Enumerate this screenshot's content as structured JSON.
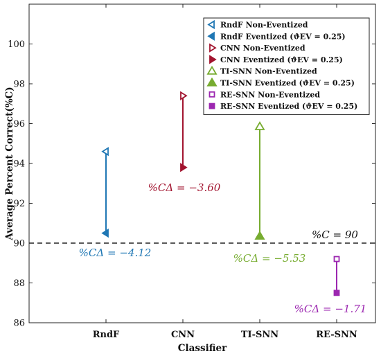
{
  "chart_data": {
    "type": "scatter",
    "xlabel": "Classifier",
    "ylabel": "Average Percent Correct(%C)",
    "ylim": [
      86,
      102
    ],
    "yticks": [
      86,
      88,
      90,
      92,
      94,
      96,
      98,
      100
    ],
    "categories": [
      "RndF",
      "CNN",
      "TI-SNN",
      "RE-SNN"
    ],
    "grid": false,
    "legend_position": "top-right",
    "reference_line": {
      "y": 90,
      "style": "dashed",
      "label": "%C = 90"
    },
    "series": [
      {
        "key": "rndf",
        "classifier": "RndF",
        "color": "#1f77b4",
        "non_eventized": 94.6,
        "eventized": 90.5,
        "delta_label": "%CΔ = −4.12",
        "legend_non": "RndF Non-Eventized",
        "legend_ev": "RndF Eventized (ϑEV = 0.25)"
      },
      {
        "key": "cnn",
        "classifier": "CNN",
        "color": "#a2142f",
        "non_eventized": 97.4,
        "eventized": 93.8,
        "delta_label": "%CΔ = −3.60",
        "legend_non": "CNN Non-Eventized",
        "legend_ev": "CNN Eventized (ϑEV = 0.25)"
      },
      {
        "key": "tisnn",
        "classifier": "TI-SNN",
        "color": "#77ac30",
        "non_eventized": 95.85,
        "eventized": 90.35,
        "delta_label": "%CΔ = −5.53",
        "legend_non": "TI-SNN Non-Eventized",
        "legend_ev": "TI-SNN Eventized (ϑEV = 0.25)"
      },
      {
        "key": "resnn",
        "classifier": "RE-SNN",
        "color": "#9c27b0",
        "non_eventized": 89.2,
        "eventized": 87.5,
        "delta_label": "%CΔ = −1.71",
        "legend_non": "RE-SNN Non-Eventized",
        "legend_ev": "RE-SNN Eventized (ϑEV = 0.25)"
      }
    ]
  }
}
